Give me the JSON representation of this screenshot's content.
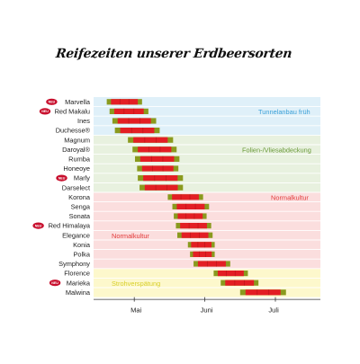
{
  "chart_data": {
    "type": "gantt",
    "title": "Reifezeiten unserer Erdbeersorten",
    "x_ticks": [
      "Mai",
      "Juni",
      "Juli"
    ],
    "zones": [
      {
        "label": "Tunnelanbau früh",
        "color": "#3aa0d8",
        "fill": "#dff0f9",
        "rows": [
          0,
          4
        ]
      },
      {
        "label": "Folien-/Vliesabdeckung",
        "color": "#6a9a3a",
        "fill": "#e8f1df",
        "rows": [
          4,
          8
        ]
      },
      {
        "label": "Normalkultur",
        "color": "#e23a3a",
        "fill": "#fbdede",
        "rows": [
          8,
          18
        ]
      },
      {
        "label": "Normalkultur",
        "color": "#e23a3a",
        "fill": null,
        "rows": null
      },
      {
        "label": "Strohverspätung",
        "color": "#d8cf2a",
        "fill": "#fdf8cc",
        "rows": [
          18,
          20
        ]
      }
    ],
    "varieties": [
      {
        "name": "Marvella",
        "neu": true,
        "start": 0.22,
        "end": 1.22
      },
      {
        "name": "Red Makalu",
        "neu": true,
        "start": 0.3,
        "end": 1.4
      },
      {
        "name": "Ines",
        "neu": false,
        "start": 0.38,
        "end": 1.62
      },
      {
        "name": "Duchesse®",
        "neu": false,
        "start": 0.45,
        "end": 1.72
      },
      {
        "name": "Magnum",
        "neu": false,
        "start": 0.82,
        "end": 2.1
      },
      {
        "name": "Daroyal®",
        "neu": false,
        "start": 0.95,
        "end": 2.2
      },
      {
        "name": "Rumba",
        "neu": false,
        "start": 1.02,
        "end": 2.28
      },
      {
        "name": "Honeoye",
        "neu": false,
        "start": 1.08,
        "end": 2.25
      },
      {
        "name": "Marly",
        "neu": true,
        "start": 1.1,
        "end": 2.38
      },
      {
        "name": "Darselect",
        "neu": false,
        "start": 1.15,
        "end": 2.38
      },
      {
        "name": "Korona",
        "neu": false,
        "start": 1.95,
        "end": 2.95
      },
      {
        "name": "Senga",
        "neu": false,
        "start": 2.08,
        "end": 3.12
      },
      {
        "name": "Sonata",
        "neu": false,
        "start": 2.12,
        "end": 3.05
      },
      {
        "name": "Red Himalaya",
        "neu": true,
        "start": 2.18,
        "end": 3.18
      },
      {
        "name": "Elegance",
        "neu": false,
        "start": 2.22,
        "end": 3.22
      },
      {
        "name": "Konia",
        "neu": false,
        "start": 2.52,
        "end": 3.28
      },
      {
        "name": "Polka",
        "neu": false,
        "start": 2.58,
        "end": 3.28
      },
      {
        "name": "Symphony",
        "neu": false,
        "start": 2.68,
        "end": 3.72
      },
      {
        "name": "Florence",
        "neu": false,
        "start": 3.25,
        "end": 4.22
      },
      {
        "name": "Marieka",
        "neu": true,
        "start": 3.45,
        "end": 4.52
      },
      {
        "name": "Malwina",
        "neu": false,
        "start": 4.0,
        "end": 5.3
      }
    ],
    "x_unit": "Halbmonat ab Anfang Mai (0 = Anfang Mai)",
    "colors": {
      "ripe": "#e31e24",
      "edge": "#8a9a1e",
      "row_divider": "#ffffff"
    },
    "badge_text": "NEU"
  }
}
